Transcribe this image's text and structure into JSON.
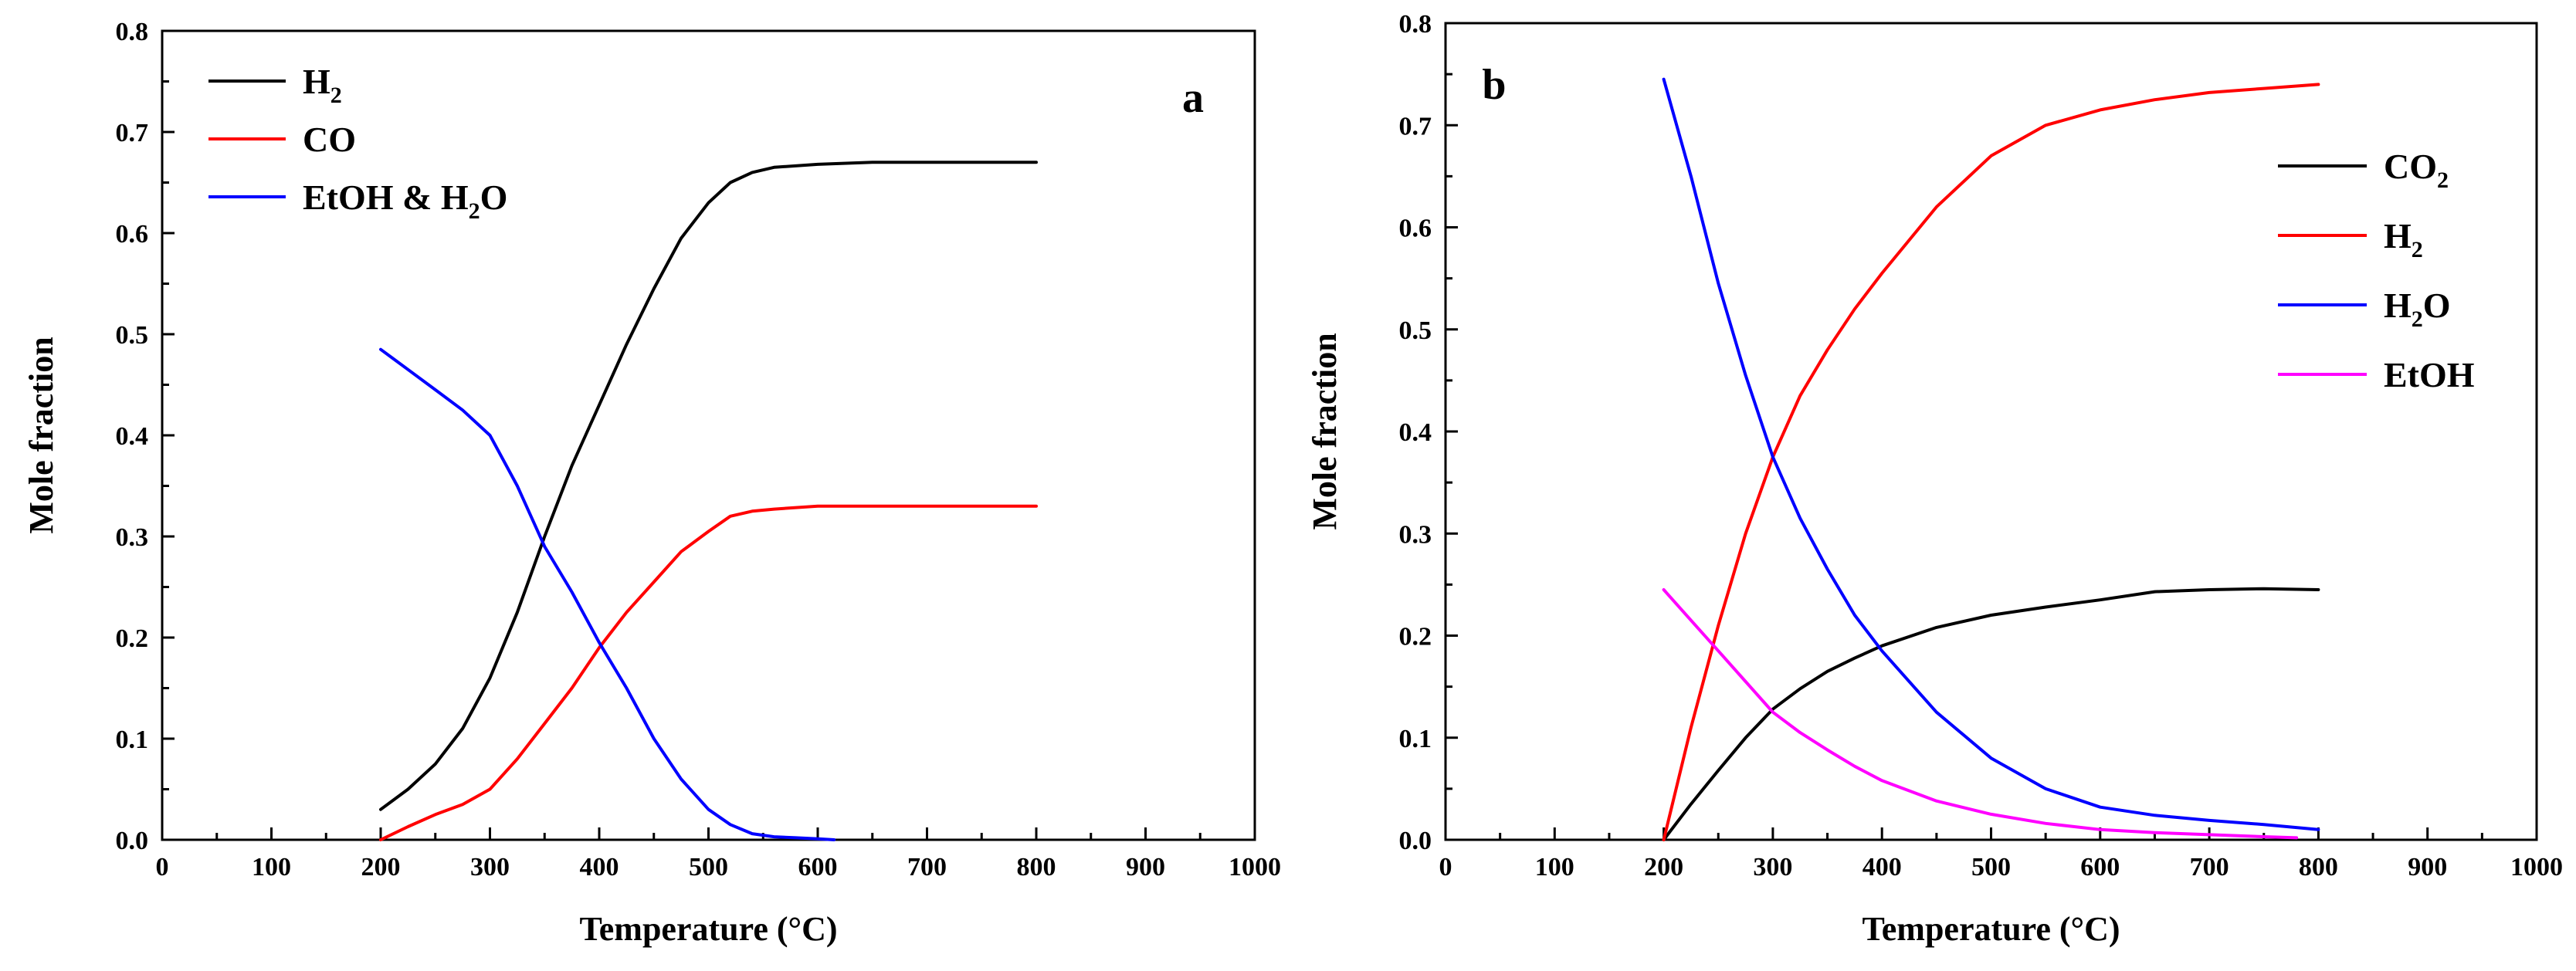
{
  "chart_data": [
    {
      "type": "line",
      "panel": "a",
      "xlabel": "Temperature (°C)",
      "ylabel": "Mole fraction",
      "xlim": [
        0,
        1000
      ],
      "ylim": [
        0,
        0.8
      ],
      "xticks": [
        "0",
        "100",
        "200",
        "300",
        "400",
        "500",
        "600",
        "700",
        "800",
        "900",
        "1000"
      ],
      "yticks": [
        "0.0",
        "0.1",
        "0.2",
        "0.3",
        "0.4",
        "0.5",
        "0.6",
        "0.7",
        "0.8"
      ],
      "legend_position": "top-left",
      "series": [
        {
          "name": "H2",
          "label_main": "H",
          "label_sub": "2",
          "label_tail": "",
          "color": "#000000",
          "x": [
            200,
            225,
            250,
            275,
            300,
            325,
            350,
            375,
            400,
            425,
            450,
            475,
            500,
            520,
            540,
            560,
            600,
            650,
            700,
            750,
            800
          ],
          "y": [
            0.03,
            0.05,
            0.075,
            0.11,
            0.16,
            0.225,
            0.3,
            0.37,
            0.43,
            0.49,
            0.545,
            0.595,
            0.63,
            0.65,
            0.66,
            0.665,
            0.668,
            0.67,
            0.67,
            0.67,
            0.67
          ]
        },
        {
          "name": "CO",
          "label_main": "CO",
          "label_sub": "",
          "label_tail": "",
          "color": "#ff0000",
          "x": [
            200,
            225,
            250,
            275,
            300,
            325,
            350,
            375,
            400,
            425,
            450,
            475,
            500,
            520,
            540,
            560,
            600,
            650,
            700,
            750,
            800
          ],
          "y": [
            0.0,
            0.013,
            0.025,
            0.035,
            0.05,
            0.08,
            0.115,
            0.15,
            0.19,
            0.225,
            0.255,
            0.285,
            0.305,
            0.32,
            0.325,
            0.327,
            0.33,
            0.33,
            0.33,
            0.33,
            0.33
          ]
        },
        {
          "name": "EtOH & H2O",
          "label_main": "EtOH & H",
          "label_sub": "2",
          "label_tail": "O",
          "color": "#0000ff",
          "x": [
            200,
            225,
            250,
            275,
            300,
            325,
            350,
            375,
            400,
            425,
            450,
            475,
            500,
            520,
            540,
            560,
            580,
            600,
            615
          ],
          "y": [
            0.485,
            0.465,
            0.445,
            0.425,
            0.4,
            0.35,
            0.29,
            0.245,
            0.195,
            0.15,
            0.1,
            0.06,
            0.03,
            0.015,
            0.006,
            0.003,
            0.002,
            0.001,
            0.0
          ]
        }
      ]
    },
    {
      "type": "line",
      "panel": "b",
      "xlabel": "Temperature (°C)",
      "ylabel": "Mole fraction",
      "xlim": [
        0,
        1000
      ],
      "ylim": [
        0,
        0.8
      ],
      "xticks": [
        "0",
        "100",
        "200",
        "300",
        "400",
        "500",
        "600",
        "700",
        "800",
        "900",
        "1000"
      ],
      "yticks": [
        "0.0",
        "0.1",
        "0.2",
        "0.3",
        "0.4",
        "0.5",
        "0.6",
        "0.7",
        "0.8"
      ],
      "legend_position": "right",
      "series": [
        {
          "name": "CO2",
          "label_main": "CO",
          "label_sub": "2",
          "label_tail": "",
          "color": "#000000",
          "x": [
            200,
            225,
            250,
            275,
            300,
            325,
            350,
            375,
            400,
            450,
            500,
            550,
            600,
            650,
            700,
            750,
            800
          ],
          "y": [
            0.0,
            0.035,
            0.068,
            0.1,
            0.128,
            0.148,
            0.165,
            0.178,
            0.19,
            0.208,
            0.22,
            0.228,
            0.235,
            0.243,
            0.245,
            0.246,
            0.245
          ]
        },
        {
          "name": "H2",
          "label_main": "H",
          "label_sub": "2",
          "label_tail": "",
          "color": "#ff0000",
          "x": [
            200,
            225,
            250,
            275,
            300,
            325,
            350,
            375,
            400,
            450,
            500,
            550,
            600,
            650,
            700,
            750,
            800
          ],
          "y": [
            0.0,
            0.11,
            0.21,
            0.3,
            0.375,
            0.435,
            0.48,
            0.52,
            0.555,
            0.62,
            0.67,
            0.7,
            0.715,
            0.725,
            0.732,
            0.736,
            0.74
          ]
        },
        {
          "name": "H2O",
          "label_main": "H",
          "label_sub": "2",
          "label_tail": "O",
          "color": "#0000ff",
          "x": [
            200,
            225,
            250,
            275,
            300,
            325,
            350,
            375,
            400,
            450,
            500,
            550,
            600,
            650,
            700,
            750,
            800
          ],
          "y": [
            0.745,
            0.65,
            0.545,
            0.455,
            0.375,
            0.315,
            0.265,
            0.22,
            0.185,
            0.125,
            0.08,
            0.05,
            0.032,
            0.024,
            0.019,
            0.015,
            0.01
          ]
        },
        {
          "name": "EtOH",
          "label_main": "EtOH",
          "label_sub": "",
          "label_tail": "",
          "color": "#ff00ff",
          "x": [
            200,
            225,
            250,
            275,
            300,
            325,
            350,
            375,
            400,
            450,
            500,
            550,
            600,
            650,
            700,
            750,
            780
          ],
          "y": [
            0.245,
            0.215,
            0.185,
            0.155,
            0.125,
            0.105,
            0.088,
            0.072,
            0.058,
            0.038,
            0.025,
            0.016,
            0.01,
            0.007,
            0.005,
            0.003,
            0.002
          ]
        }
      ]
    }
  ],
  "panel_a": {
    "tag": "a"
  },
  "panel_b": {
    "tag": "b"
  }
}
